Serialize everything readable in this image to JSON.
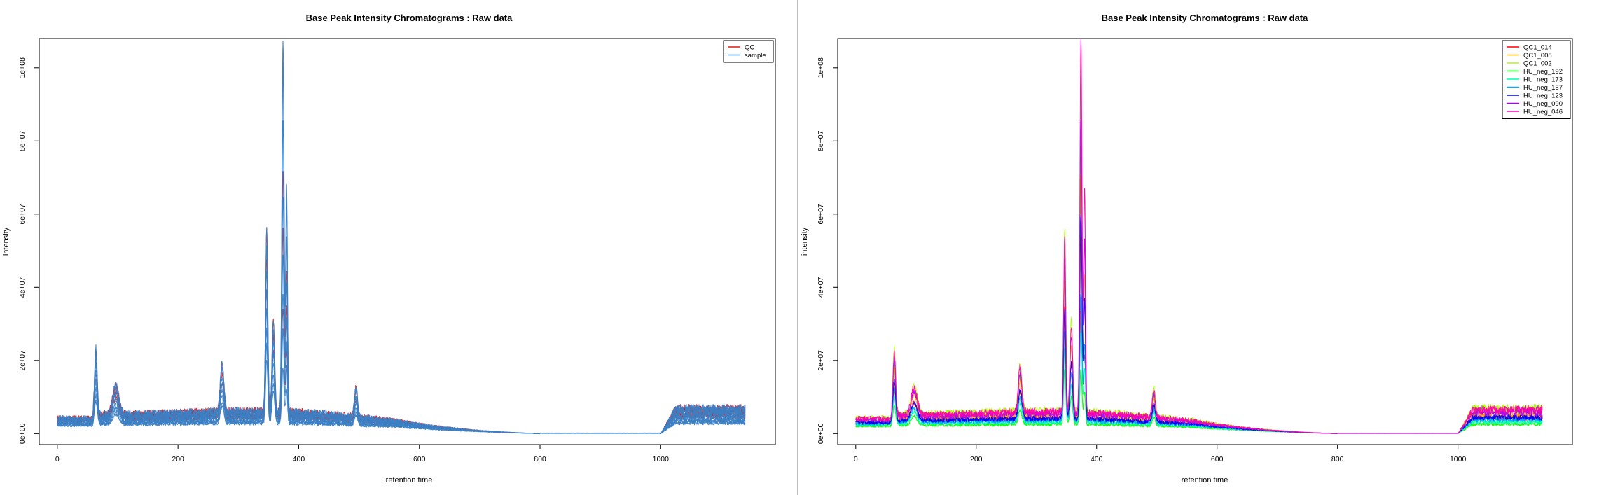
{
  "chart_data": [
    {
      "type": "line",
      "title": "Base Peak Intensity Chromatograms : Raw data",
      "xlabel": "retention time",
      "ylabel": "intensity",
      "xlim": [
        -30,
        1190
      ],
      "ylim": [
        -3000000,
        108000000
      ],
      "xticks": [
        0,
        200,
        400,
        600,
        800,
        1000
      ],
      "xtick_labels": [
        "0",
        "200",
        "400",
        "600",
        "800",
        "1000"
      ],
      "yticks": [
        0,
        20000000,
        40000000,
        60000000,
        80000000,
        100000000
      ],
      "ytick_labels": [
        "0e+00",
        "2e+07",
        "4e+07",
        "6e+07",
        "8e+07",
        "1e+08"
      ],
      "legend_position": "top-right",
      "grid": false,
      "series": [
        {
          "name": "QC",
          "color": "#e41a1c"
        },
        {
          "name": "sample",
          "color": "#3b7fc4"
        }
      ],
      "traces": [
        {
          "series": "QC",
          "scale": 1.0,
          "big_peak": 65000000.0,
          "seed": 3
        },
        {
          "series": "QC",
          "scale": 0.85,
          "big_peak": 50000000.0,
          "seed": 7
        },
        {
          "series": "QC",
          "scale": 0.7,
          "big_peak": 30000000.0,
          "seed": 11
        },
        {
          "series": "sample",
          "scale": 1.0,
          "big_peak": 102000000.0,
          "seed": 21
        },
        {
          "series": "sample",
          "scale": 0.9,
          "big_peak": 95000000.0,
          "seed": 22
        },
        {
          "series": "sample",
          "scale": 0.8,
          "big_peak": 80000000.0,
          "seed": 23
        },
        {
          "series": "sample",
          "scale": 0.7,
          "big_peak": 60000000.0,
          "seed": 24
        },
        {
          "series": "sample",
          "scale": 0.6,
          "big_peak": 45000000.0,
          "seed": 25
        },
        {
          "series": "sample",
          "scale": 0.5,
          "big_peak": 35000000.0,
          "seed": 26
        },
        {
          "series": "sample",
          "scale": 0.42,
          "big_peak": 25000000.0,
          "seed": 27
        },
        {
          "series": "sample",
          "scale": 0.35,
          "big_peak": 15000000.0,
          "seed": 28
        }
      ]
    },
    {
      "type": "line",
      "title": "Base Peak Intensity Chromatograms : Raw data",
      "xlabel": "retention time",
      "ylabel": "intensity",
      "xlim": [
        -30,
        1190
      ],
      "ylim": [
        -3000000,
        108000000
      ],
      "xticks": [
        0,
        200,
        400,
        600,
        800,
        1000
      ],
      "xtick_labels": [
        "0",
        "200",
        "400",
        "600",
        "800",
        "1000"
      ],
      "yticks": [
        0,
        20000000,
        40000000,
        60000000,
        80000000,
        100000000
      ],
      "ytick_labels": [
        "0e+00",
        "2e+07",
        "4e+07",
        "6e+07",
        "8e+07",
        "1e+08"
      ],
      "legend_position": "top-right",
      "grid": false,
      "series": [
        {
          "name": "QC1_014",
          "color": "#ff0000"
        },
        {
          "name": "QC1_008",
          "color": "#ffaa00"
        },
        {
          "name": "QC1_002",
          "color": "#aaff00"
        },
        {
          "name": "HU_neg_192",
          "color": "#00ff00"
        },
        {
          "name": "HU_neg_173",
          "color": "#00ffaa"
        },
        {
          "name": "HU_neg_157",
          "color": "#00aaff"
        },
        {
          "name": "HU_neg_123",
          "color": "#0000ff"
        },
        {
          "name": "HU_neg_090",
          "color": "#aa00ff"
        },
        {
          "name": "HU_neg_046",
          "color": "#ff00aa"
        }
      ],
      "traces": [
        {
          "series": "QC1_014",
          "scale": 0.6,
          "big_peak": 30000000.0,
          "seed": 31
        },
        {
          "series": "QC1_008",
          "scale": 0.75,
          "big_peak": 65000000.0,
          "seed": 32
        },
        {
          "series": "QC1_002",
          "scale": 1.0,
          "big_peak": 50000000.0,
          "seed": 33
        },
        {
          "series": "HU_neg_192",
          "scale": 0.3,
          "big_peak": 15000000.0,
          "seed": 34
        },
        {
          "series": "HU_neg_173",
          "scale": 0.4,
          "big_peak": 25000000.0,
          "seed": 35
        },
        {
          "series": "HU_neg_157",
          "scale": 0.5,
          "big_peak": 35000000.0,
          "seed": 36
        },
        {
          "series": "HU_neg_123",
          "scale": 0.6,
          "big_peak": 55000000.0,
          "seed": 37
        },
        {
          "series": "HU_neg_090",
          "scale": 0.85,
          "big_peak": 80000000.0,
          "seed": 38
        },
        {
          "series": "HU_neg_046",
          "scale": 0.95,
          "big_peak": 102000000.0,
          "seed": 39
        }
      ]
    }
  ]
}
